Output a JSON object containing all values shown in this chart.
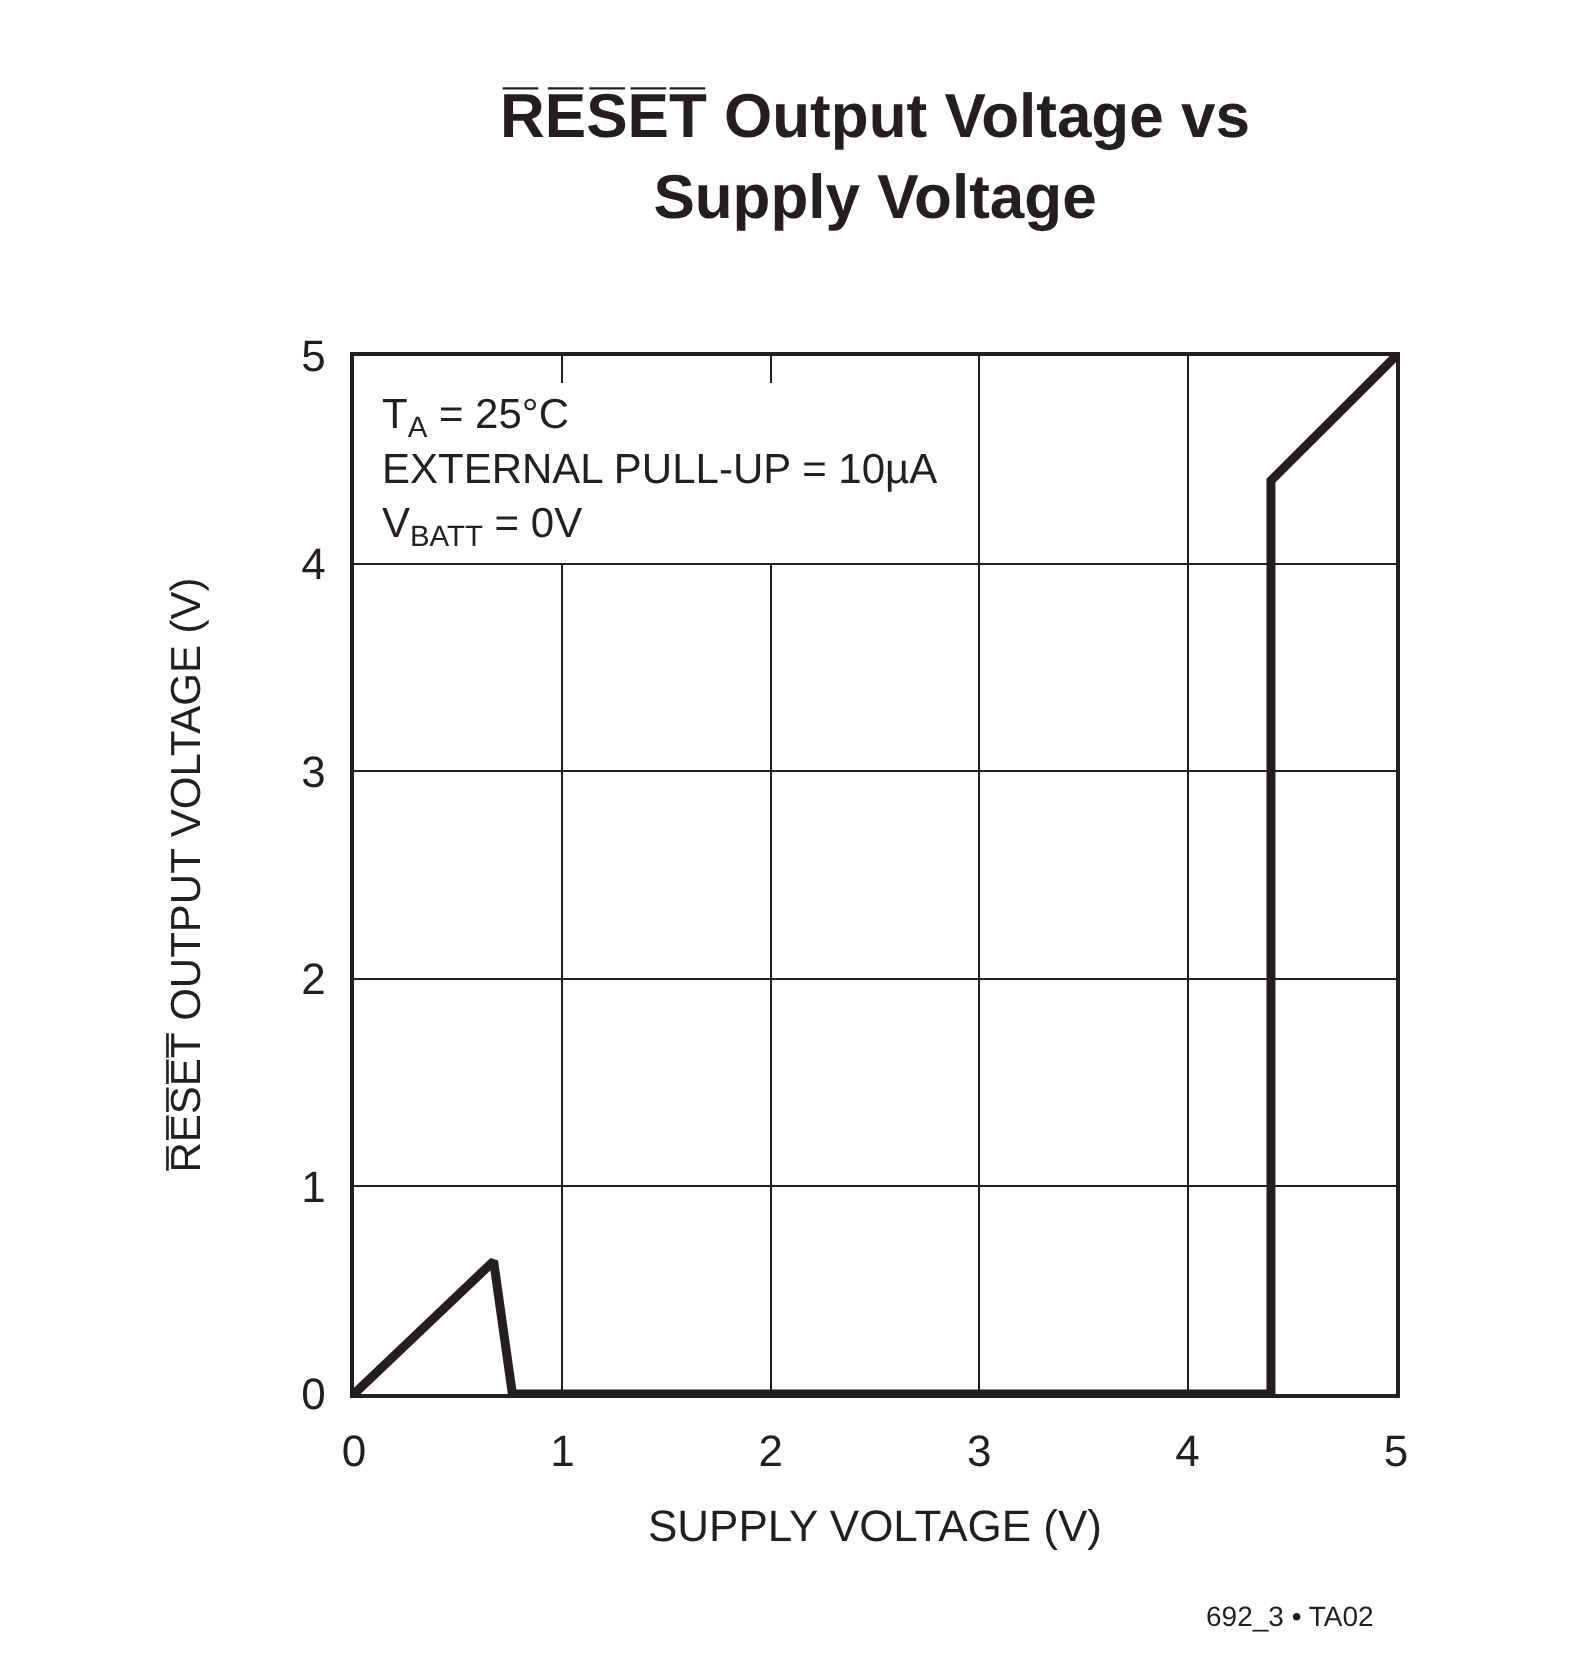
{
  "chart_data": {
    "type": "line",
    "title": "R̅E̅S̅E̅T̅ Output Voltage vs\nSupply Voltage",
    "xlabel": "SUPPLY VOLTAGE (V)",
    "ylabel": "R̅E̅S̅E̅T̅ OUTPUT VOLTAGE (V)",
    "annotations": [
      "T$_{A}$ = 25°C\nEXTERNAL PULL-UP = 10µA\nV$_{BATT}$ = 0V",
      "692_3 • TA02"
    ],
    "x": [
      0,
      0.67,
      0.76,
      4.4,
      4.4,
      5
    ],
    "series": [
      {
        "color": "#231f20",
        "values": [
          0,
          0.64,
          0,
          0,
          4.4,
          5
        ]
      }
    ],
    "xlim": [
      0,
      5
    ],
    "ylim": [
      0,
      5
    ],
    "xticks": [
      0,
      1,
      2,
      3,
      4,
      5
    ],
    "yticks": [
      0,
      1,
      2,
      3,
      4,
      5
    ],
    "grid": true,
    "marker": "none",
    "line_style": "solid"
  }
}
